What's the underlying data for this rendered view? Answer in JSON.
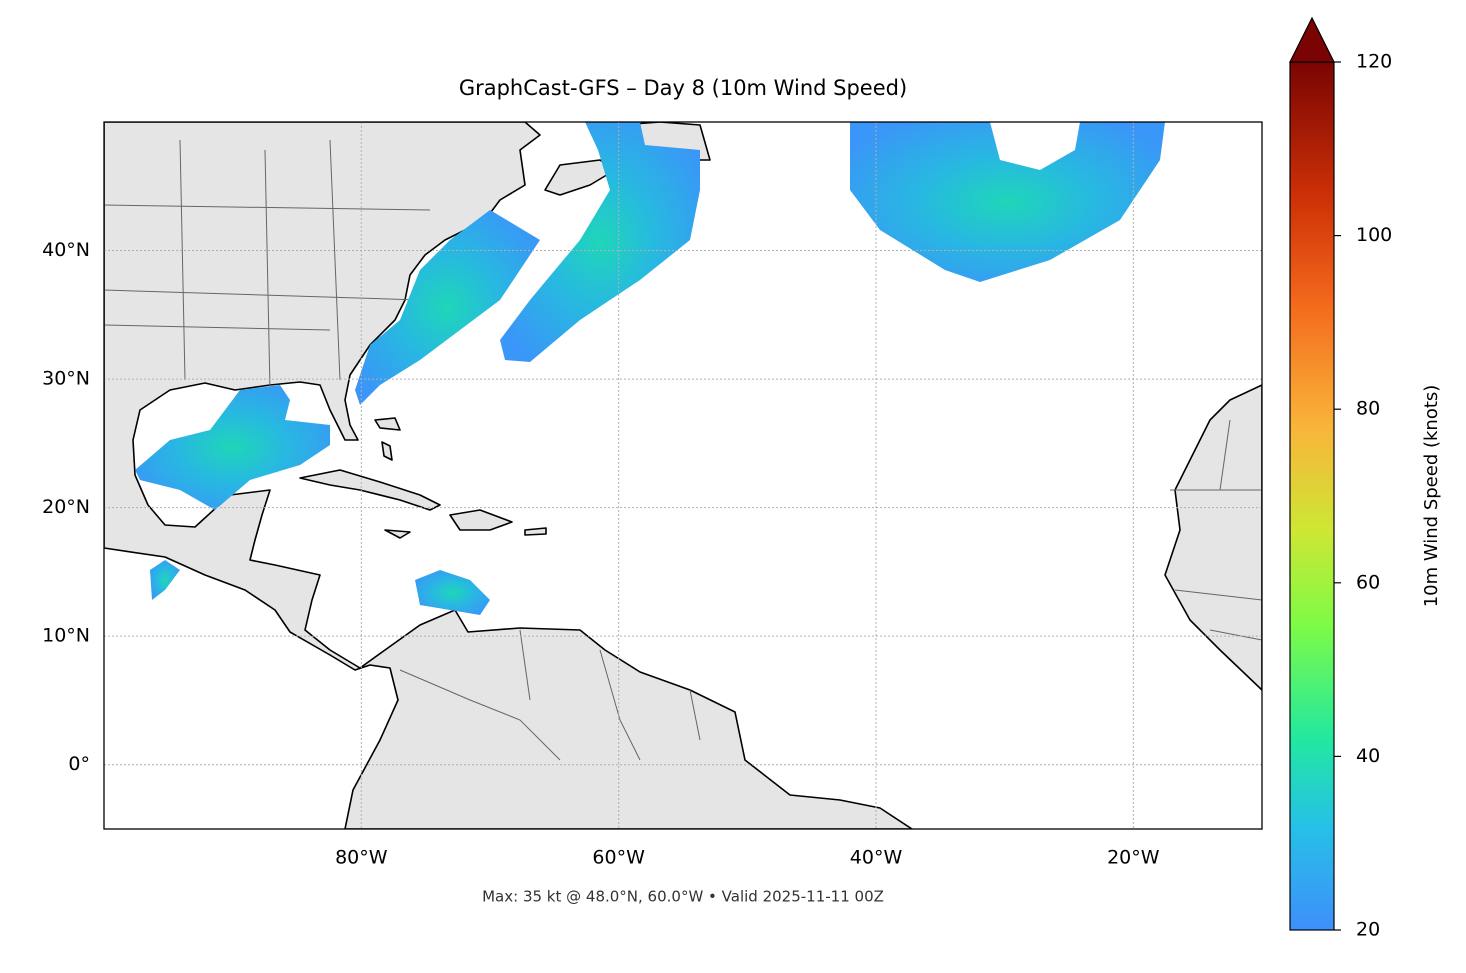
{
  "chart_data": {
    "type": "map",
    "title": "GraphCast-GFS – Day 8 (10m Wind Speed)",
    "xlim": [
      -100,
      -10
    ],
    "ylim": [
      -5,
      50
    ],
    "xticks": [
      {
        "value": -80,
        "label": "80°W"
      },
      {
        "value": -60,
        "label": "60°W"
      },
      {
        "value": -40,
        "label": "40°W"
      },
      {
        "value": -20,
        "label": "20°W"
      }
    ],
    "yticks": [
      {
        "value": 0,
        "label": "0°"
      },
      {
        "value": 10,
        "label": "10°N"
      },
      {
        "value": 20,
        "label": "20°N"
      },
      {
        "value": 30,
        "label": "30°N"
      },
      {
        "value": 40,
        "label": "40°N"
      }
    ],
    "grid": true,
    "colorbar": {
      "label": "10m Wind Speed (knots)",
      "lim": [
        20,
        120
      ],
      "ticks": [
        20,
        40,
        60,
        80,
        100,
        120
      ],
      "extend": "max"
    },
    "annotation": "Max: 35 kt @ 48.0°N, 60.0°W • Valid 2025-11-11 00Z"
  }
}
